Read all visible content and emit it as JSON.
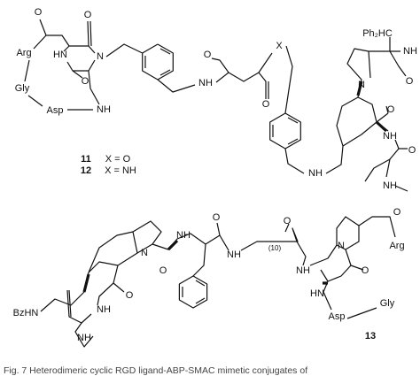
{
  "structure_1": {
    "atoms": [
      "O",
      "O",
      "Arg",
      "HN",
      "N",
      "Gly",
      "Asp",
      "NH",
      "O",
      "NH",
      "O",
      "X",
      "O",
      "NH",
      "Ph₂HC",
      "NH",
      "O",
      "N",
      "O",
      "NH",
      "O",
      "NH"
    ],
    "compounds": [
      {
        "number": "11",
        "definition": "X = O"
      },
      {
        "number": "12",
        "definition": "X = NH"
      }
    ]
  },
  "structure_2": {
    "atoms": [
      "BzHN",
      "NH",
      "O",
      "N",
      "O",
      "NH",
      "O",
      "NH",
      "(10)",
      "O",
      "NH",
      "N",
      "O",
      "O",
      "Arg",
      "HN",
      "Asp",
      "Gly",
      "NH"
    ],
    "number": "13"
  },
  "caption": "Fig. 7  Heterodimeric cyclic RGD ligand-ABP-SMAC mimetic conjugates of"
}
